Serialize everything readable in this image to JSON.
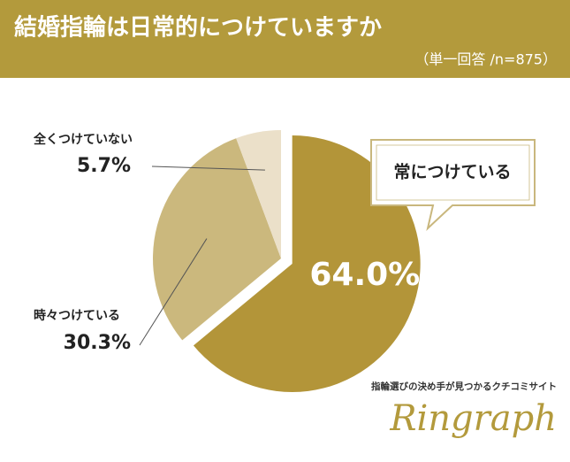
{
  "chart_data": {
    "type": "pie",
    "title": "結婚指輪は日常的につけていますか",
    "subtitle": "（単一回答 /n=875）",
    "categories": [
      "常につけている",
      "時々つけている",
      "全くつけていない"
    ],
    "values": [
      64.0,
      30.3,
      5.7
    ],
    "value_labels": [
      "64.0%",
      "30.3%",
      "5.7%"
    ],
    "colors": [
      "#b39539",
      "#cbb87d",
      "#ebe0c9"
    ]
  },
  "branding": {
    "tagline": "指輪選びの決め手が見つかるクチコミサイト",
    "logo": "Ringraph"
  }
}
